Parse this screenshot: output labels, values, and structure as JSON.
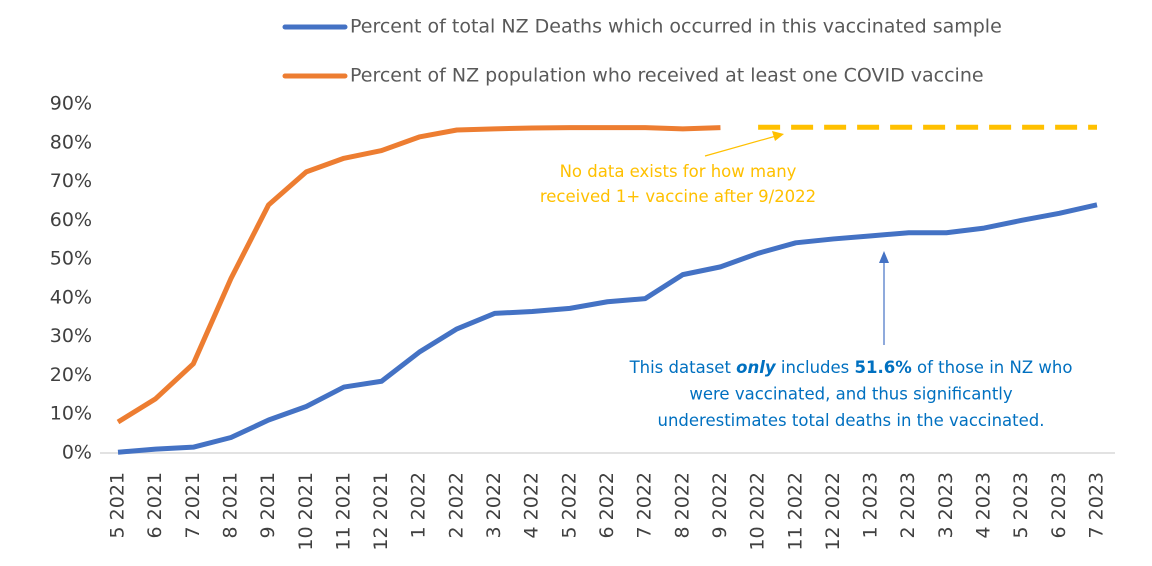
{
  "chart_data": {
    "type": "line",
    "categories": [
      "5 2021",
      "6 2021",
      "7 2021",
      "8 2021",
      "9 2021",
      "10 2021",
      "11 2021",
      "12 2021",
      "1 2022",
      "2 2022",
      "3 2022",
      "4 2022",
      "5 2022",
      "6 2022",
      "7 2022",
      "8 2022",
      "9 2022",
      "10 2022",
      "11 2022",
      "12 2022",
      "1 2023",
      "2 2023",
      "3 2023",
      "4 2023",
      "5 2023",
      "6 2023",
      "7 2023"
    ],
    "series": [
      {
        "name": "Percent of total NZ Deaths which occurred in this vaccinated sample",
        "color": "#4472c4",
        "values": [
          0.2,
          1,
          1.5,
          4,
          8.5,
          12,
          17,
          18.5,
          26,
          32,
          36,
          36.5,
          37.3,
          39,
          39.8,
          46,
          48,
          51.5,
          54.2,
          55.2,
          56,
          56.8,
          56.8,
          58,
          60,
          61.8,
          64
        ]
      },
      {
        "name": "Percent of NZ population who received at least one COVID vaccine",
        "color": "#ed7d31",
        "values": [
          8,
          14,
          23,
          45,
          64,
          72.5,
          76,
          78,
          81.5,
          83.3,
          83.6,
          83.8,
          83.9,
          83.9,
          83.9,
          83.6,
          83.9,
          null,
          null,
          null,
          null,
          null,
          null,
          null,
          null,
          null,
          null
        ]
      }
    ],
    "projection": {
      "color": "#ffc000",
      "dashed": true,
      "values": [
        null,
        null,
        null,
        null,
        null,
        null,
        null,
        null,
        null,
        null,
        null,
        null,
        null,
        null,
        null,
        null,
        null,
        84,
        84,
        84,
        84,
        84,
        84,
        84,
        84,
        84,
        84
      ]
    },
    "ylim": [
      0,
      90
    ],
    "yticks": [
      {
        "value": 0,
        "label": "0%"
      },
      {
        "value": 10,
        "label": "10%"
      },
      {
        "value": 20,
        "label": "20%"
      },
      {
        "value": 30,
        "label": "30%"
      },
      {
        "value": 40,
        "label": "40%"
      },
      {
        "value": 50,
        "label": "50%"
      },
      {
        "value": 60,
        "label": "60%"
      },
      {
        "value": 70,
        "label": "70%"
      },
      {
        "value": 80,
        "label": "80%"
      },
      {
        "value": 90,
        "label": "90%"
      }
    ],
    "grid": false,
    "annotations": [
      {
        "color": "#ffc000",
        "lines": [
          [
            "No data exists for how many"
          ],
          [
            "received 1+ vaccine after 9/2022"
          ]
        ]
      },
      {
        "color": "#0070c0",
        "lines": [
          [
            "This dataset ",
            "only",
            " includes ",
            "51.6%",
            " of those in NZ who"
          ],
          [
            "were vaccinated, and thus significantly"
          ],
          [
            "underestimates total deaths in the vaccinated."
          ]
        ]
      }
    ]
  }
}
